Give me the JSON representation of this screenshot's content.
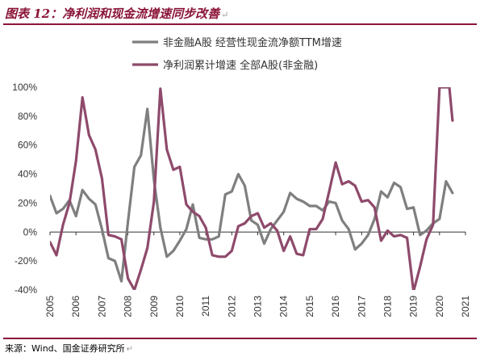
{
  "title": "图表 12：净利润和现金流增速同步改善",
  "title_mark": "↵",
  "source": "来源：Wind、国金证券研究所",
  "source_mark": "↵",
  "colors": {
    "accent": "#8a1538",
    "series_gray": "#7f7f7f",
    "series_purple": "#8e4a6b"
  },
  "chart_data": {
    "type": "line",
    "title": "",
    "xlabel": "",
    "ylabel": "",
    "ylim": [
      -40,
      100
    ],
    "yticks": [
      -40,
      -20,
      0,
      20,
      40,
      60,
      80,
      100
    ],
    "ytick_labels": [
      "-40%",
      "-20%",
      "0%",
      "20%",
      "40%",
      "60%",
      "80%",
      "100%"
    ],
    "xlim": [
      2005,
      2021
    ],
    "xticks": [
      2005,
      2006,
      2007,
      2008,
      2009,
      2010,
      2011,
      2012,
      2013,
      2014,
      2015,
      2016,
      2017,
      2018,
      2019,
      2020,
      2021
    ],
    "xtick_labels": [
      "2005",
      "2006",
      "2007",
      "2008",
      "2009",
      "2010",
      "2011",
      "2012",
      "2013",
      "2014",
      "2015",
      "2016",
      "2017",
      "2018",
      "2019",
      "2020",
      "2021"
    ],
    "grid": false,
    "legend_position": "top",
    "series": [
      {
        "name": "非金融A股 经营性现金流净额TTM增速",
        "color": "#7f7f7f",
        "x": [
          2005.0,
          2005.25,
          2005.5,
          2005.75,
          2006.0,
          2006.25,
          2006.5,
          2006.75,
          2007.0,
          2007.25,
          2007.5,
          2007.75,
          2008.0,
          2008.25,
          2008.5,
          2008.75,
          2009.0,
          2009.25,
          2009.5,
          2009.75,
          2010.0,
          2010.25,
          2010.5,
          2010.75,
          2011.0,
          2011.25,
          2011.5,
          2011.75,
          2012.0,
          2012.25,
          2012.5,
          2012.75,
          2013.0,
          2013.25,
          2013.5,
          2013.75,
          2014.0,
          2014.25,
          2014.5,
          2014.75,
          2015.0,
          2015.25,
          2015.5,
          2015.75,
          2016.0,
          2016.25,
          2016.5,
          2016.75,
          2017.0,
          2017.25,
          2017.5,
          2017.75,
          2018.0,
          2018.25,
          2018.5,
          2018.75,
          2019.0,
          2019.25,
          2019.5,
          2019.75,
          2020.0,
          2020.25,
          2020.5
        ],
        "values": [
          25,
          13,
          16,
          22,
          11,
          29,
          23,
          19,
          2,
          -18,
          -20,
          -34,
          7,
          45,
          53,
          85,
          36,
          3,
          -17,
          -13,
          -6,
          2,
          19,
          -4,
          -5,
          -5,
          -3,
          26,
          28,
          40,
          32,
          8,
          5,
          -8,
          2,
          8,
          14,
          27,
          23,
          21,
          18,
          18,
          15,
          21,
          20,
          8,
          2,
          -12,
          -8,
          -2,
          9,
          28,
          24,
          34,
          31,
          16,
          17,
          -2,
          1,
          6,
          9,
          35,
          27
        ]
      },
      {
        "name": "净利润累计增速 全部A股(非金融)",
        "color": "#8e4a6b",
        "x": [
          2005.0,
          2005.25,
          2005.5,
          2005.75,
          2006.0,
          2006.25,
          2006.5,
          2006.75,
          2007.0,
          2007.25,
          2007.5,
          2007.75,
          2008.0,
          2008.25,
          2008.5,
          2008.75,
          2009.0,
          2009.25,
          2009.5,
          2009.75,
          2010.0,
          2010.25,
          2010.5,
          2010.75,
          2011.0,
          2011.25,
          2011.5,
          2011.75,
          2012.0,
          2012.25,
          2012.5,
          2012.75,
          2013.0,
          2013.25,
          2013.5,
          2013.75,
          2014.0,
          2014.25,
          2014.5,
          2014.75,
          2015.0,
          2015.25,
          2015.5,
          2015.75,
          2016.0,
          2016.25,
          2016.5,
          2016.75,
          2017.0,
          2017.25,
          2017.5,
          2017.75,
          2018.0,
          2018.25,
          2018.5,
          2018.75,
          2019.0,
          2019.25,
          2019.5,
          2019.75,
          2020.0,
          2020.25,
          2020.38,
          2020.5
        ],
        "values": [
          -7,
          -16,
          5,
          20,
          49,
          93,
          67,
          57,
          37,
          -2,
          -3,
          -5,
          -32,
          -40,
          -26,
          -11,
          21,
          99,
          57,
          43,
          45,
          19,
          14,
          11,
          3,
          -16,
          -17,
          -17,
          -13,
          4,
          6,
          11,
          13,
          3,
          6,
          1,
          -13,
          -3,
          -15,
          -16,
          2,
          2,
          9,
          28,
          48,
          33,
          35,
          32,
          21,
          22,
          17,
          -6,
          1,
          -3,
          -2,
          -4,
          -41,
          -24,
          -5,
          5,
          100,
          100,
          100,
          77
        ]
      }
    ]
  }
}
